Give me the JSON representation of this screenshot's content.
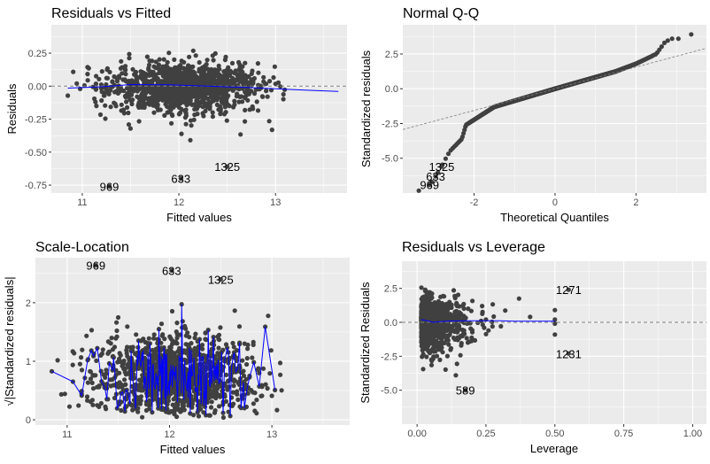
{
  "chart_data": [
    {
      "id": "residuals-vs-fitted",
      "type": "scatter",
      "title": "Residuals vs Fitted",
      "xlabel": "Fitted values",
      "ylabel": "Residuals",
      "xlim": [
        10.68,
        13.74
      ],
      "ylim": [
        -0.81,
        0.465
      ],
      "xticks": [
        {
          "v": 11,
          "label": "11"
        },
        {
          "v": 12,
          "label": "12"
        },
        {
          "v": 13,
          "label": "13"
        }
      ],
      "yticks": [
        {
          "v": 0.25,
          "label": "0.25"
        },
        {
          "v": 0,
          "label": "0.00"
        },
        {
          "v": -0.25,
          "label": "-0.25"
        },
        {
          "v": -0.5,
          "label": "-0.50"
        },
        {
          "v": -0.75,
          "label": "-0.75"
        }
      ],
      "grid": true,
      "reference_line": {
        "type": "hline",
        "y": 0,
        "style": "dashed",
        "color": "#808080"
      },
      "smooth_line": {
        "color": "#0000ff",
        "points": [
          [
            10.85,
            -0.015
          ],
          [
            11.2,
            -0.005
          ],
          [
            11.5,
            0.012
          ],
          [
            11.9,
            0.01
          ],
          [
            12.3,
            0.0
          ],
          [
            12.7,
            -0.01
          ],
          [
            13.0,
            -0.02
          ],
          [
            13.3,
            -0.03
          ],
          [
            13.65,
            -0.04
          ]
        ]
      },
      "labeled_points": [
        {
          "label": "969",
          "x": 11.28,
          "y": -0.76
        },
        {
          "label": "633",
          "x": 12.02,
          "y": -0.7
        },
        {
          "label": "1325",
          "x": 12.5,
          "y": -0.61
        }
      ]
    },
    {
      "id": "normal-qq",
      "type": "scatter",
      "title": "Normal Q-Q",
      "xlabel": "Theoretical Quantiles",
      "ylabel": "Standardized residuals",
      "xlim": [
        -3.76,
        3.74
      ],
      "ylim": [
        -7.5,
        4.6
      ],
      "xticks": [
        {
          "v": -2,
          "label": "-2"
        },
        {
          "v": 0,
          "label": "0"
        },
        {
          "v": 2,
          "label": "2"
        }
      ],
      "yticks": [
        {
          "v": 2.5,
          "label": "2.5"
        },
        {
          "v": 0,
          "label": "0.0"
        },
        {
          "v": -2.5,
          "label": "-2.5"
        },
        {
          "v": -5,
          "label": "-5.0"
        }
      ],
      "grid": true,
      "reference_line": {
        "type": "abline",
        "intercept": 0,
        "slope": 0.78,
        "style": "dashed",
        "color": "#808080"
      },
      "sample_quantiles_curve": [
        [
          -3.4,
          -7.4
        ],
        [
          -3.0,
          -6.6
        ],
        [
          -2.6,
          -4.5
        ],
        [
          -2.3,
          -3.6
        ],
        [
          -2.2,
          -2.6
        ],
        [
          -1.5,
          -1.3
        ],
        [
          0,
          0
        ],
        [
          1.5,
          1.25
        ],
        [
          2.0,
          1.8
        ],
        [
          2.5,
          2.5
        ],
        [
          2.7,
          3.3
        ],
        [
          2.85,
          3.6
        ],
        [
          3.05,
          3.6
        ],
        [
          3.4,
          3.95
        ]
      ],
      "labeled_points": [
        {
          "label": "1325",
          "x": -2.8,
          "y": -5.6
        },
        {
          "label": "633",
          "x": -2.95,
          "y": -6.3
        },
        {
          "label": "969",
          "x": -3.1,
          "y": -6.9
        }
      ]
    },
    {
      "id": "scale-location",
      "type": "scatter",
      "title": "Scale-Location",
      "xlabel": "Fitted values",
      "ylabel": "√|Standardized residuals|",
      "xlim": [
        10.69,
        13.76
      ],
      "ylim": [
        -0.09,
        2.77
      ],
      "xticks": [
        {
          "v": 11,
          "label": "11"
        },
        {
          "v": 12,
          "label": "12"
        },
        {
          "v": 13,
          "label": "13"
        }
      ],
      "yticks": [
        {
          "v": 0,
          "label": "0"
        },
        {
          "v": 1,
          "label": "1"
        },
        {
          "v": 2,
          "label": "2"
        }
      ],
      "grid": true,
      "smooth_line": {
        "color": "#0000ff",
        "style": "jagged"
      },
      "labeled_points": [
        {
          "label": "969",
          "x": 11.28,
          "y": 2.64
        },
        {
          "label": "633",
          "x": 12.02,
          "y": 2.55
        },
        {
          "label": "1325",
          "x": 12.5,
          "y": 2.4
        }
      ]
    },
    {
      "id": "residuals-vs-leverage",
      "type": "scatter",
      "title": "Residuals vs Leverage",
      "xlabel": "Leverage",
      "ylabel": "Standardized Residuals",
      "xlim": [
        -0.055,
        1.05
      ],
      "ylim": [
        -7.5,
        4.5
      ],
      "xticks": [
        {
          "v": 0,
          "label": "0.00"
        },
        {
          "v": 0.25,
          "label": "0.25"
        },
        {
          "v": 0.5,
          "label": "0.50"
        },
        {
          "v": 0.75,
          "label": "0.75"
        },
        {
          "v": 1,
          "label": "1.00"
        }
      ],
      "yticks": [
        {
          "v": 2.5,
          "label": "2.5"
        },
        {
          "v": 0,
          "label": "0.0"
        },
        {
          "v": -2.5,
          "label": "-2.5"
        },
        {
          "v": -5,
          "label": "-5.0"
        }
      ],
      "grid": true,
      "reference_line": {
        "type": "hline",
        "y": 0,
        "style": "dashed",
        "color": "#808080"
      },
      "smooth_line": {
        "color": "#0000ff",
        "points": [
          [
            0.015,
            0.2
          ],
          [
            0.04,
            0.1
          ],
          [
            0.06,
            0.0
          ],
          [
            0.08,
            0.05
          ],
          [
            0.12,
            0.1
          ],
          [
            0.2,
            0.12
          ],
          [
            0.3,
            0.12
          ],
          [
            0.35,
            0.08
          ],
          [
            0.5,
            0.08
          ]
        ]
      },
      "extra_points": [
        [
          0.5,
          0.9
        ],
        [
          0.5,
          0.2
        ],
        [
          0.5,
          -0.1
        ],
        [
          0.5,
          -0.9
        ],
        [
          0.37,
          1.75
        ],
        [
          0.41,
          0.4
        ]
      ],
      "labeled_points": [
        {
          "label": "1271",
          "x": 0.55,
          "y": 2.4
        },
        {
          "label": "1231",
          "x": 0.55,
          "y": -2.3
        },
        {
          "label": "589",
          "x": 0.175,
          "y": -5.0
        }
      ]
    }
  ],
  "colors": {
    "panel_bg": "#ebebeb",
    "grid": "#ffffff",
    "point": "#404040",
    "smooth": "#0000ff",
    "reference": "#808080"
  }
}
